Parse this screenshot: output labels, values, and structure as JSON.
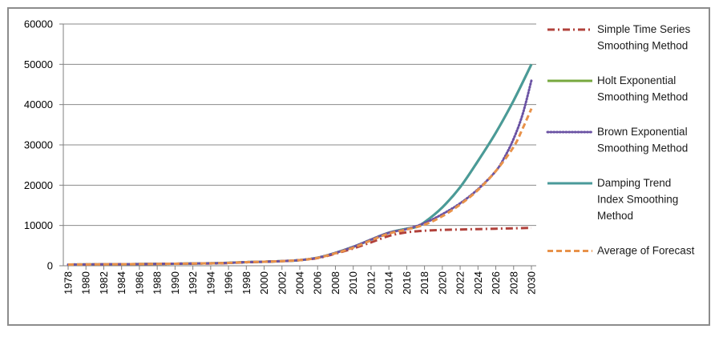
{
  "chart_data": {
    "type": "line",
    "title": "",
    "xlabel": "",
    "ylabel": "",
    "ylim": [
      0,
      60000
    ],
    "y_ticks": [
      0,
      10000,
      20000,
      30000,
      40000,
      50000,
      60000
    ],
    "y_tick_labels": [
      "0",
      "10000",
      "20000",
      "30000",
      "40000",
      "50000",
      "60000"
    ],
    "x_range": [
      1978,
      2030
    ],
    "x_ticks": [
      1978,
      1980,
      1982,
      1984,
      1986,
      1988,
      1990,
      1992,
      1994,
      1996,
      1998,
      2000,
      2002,
      2004,
      2006,
      2008,
      2010,
      2012,
      2014,
      2016,
      2018,
      2020,
      2022,
      2024,
      2026,
      2028,
      2030
    ],
    "x_tick_labels": [
      "1978",
      "1980",
      "1982",
      "1984",
      "1986",
      "1988",
      "1990",
      "1992",
      "1994",
      "1996",
      "1998",
      "2000",
      "2002",
      "2004",
      "2006",
      "2008",
      "2010",
      "2012",
      "2014",
      "2016",
      "2018",
      "2020",
      "2022",
      "2024",
      "2026",
      "2028",
      "2030"
    ],
    "grid": "horizontal",
    "legend_position": "right",
    "series": [
      {
        "name": "Holt Exponential Smoothing Method",
        "legend_lines": [
          "Holt Exponential",
          "Smoothing Method"
        ],
        "color": "#77a83f",
        "dash": "solid",
        "x": [
          1978,
          1985,
          1990,
          1995,
          1998,
          2000,
          2002,
          2004,
          2006,
          2008,
          2010,
          2012,
          2014,
          2016,
          2017,
          2018,
          2020,
          2022,
          2024,
          2026,
          2028,
          2030
        ],
        "values": [
          300,
          400,
          500,
          650,
          900,
          1000,
          1150,
          1400,
          2000,
          3200,
          4700,
          6500,
          8200,
          9200,
          9600,
          10800,
          14500,
          19500,
          26000,
          33000,
          41000,
          50000
        ]
      },
      {
        "name": "Damping Trend Index Smoothing Method",
        "legend_lines": [
          "Damping Trend",
          "Index Smoothing",
          "Method"
        ],
        "color": "#4a9a9a",
        "dash": "solid",
        "x": [
          1978,
          1985,
          1990,
          1995,
          1998,
          2000,
          2002,
          2004,
          2006,
          2008,
          2010,
          2012,
          2014,
          2016,
          2017,
          2018,
          2020,
          2022,
          2024,
          2026,
          2028,
          2030
        ],
        "values": [
          300,
          400,
          500,
          650,
          900,
          1000,
          1150,
          1400,
          2000,
          3200,
          4700,
          6500,
          8200,
          9200,
          9600,
          10800,
          14500,
          19500,
          26000,
          33000,
          41000,
          50000
        ]
      },
      {
        "name": "Simple Time Series Smoothing Method",
        "legend_lines": [
          "Simple Time Series",
          "Smoothing Method"
        ],
        "color": "#b1413b",
        "dash": "dashdot",
        "x": [
          1978,
          1985,
          1990,
          1995,
          1998,
          2000,
          2002,
          2004,
          2006,
          2008,
          2010,
          2012,
          2014,
          2016,
          2018,
          2020,
          2022,
          2024,
          2026,
          2028,
          2030
        ],
        "values": [
          300,
          400,
          500,
          600,
          850,
          1000,
          1150,
          1400,
          1900,
          3000,
          4300,
          5800,
          7400,
          8300,
          8700,
          8900,
          9000,
          9100,
          9200,
          9300,
          9400
        ]
      },
      {
        "name": "Brown Exponential Smoothing Method",
        "legend_lines": [
          "Brown Exponential",
          "Smoothing Method"
        ],
        "color": "#6a52a3",
        "dash": "dotted",
        "x": [
          1978,
          1985,
          1990,
          1995,
          1998,
          2000,
          2002,
          2004,
          2006,
          2008,
          2010,
          2012,
          2014,
          2016,
          2018,
          2020,
          2022,
          2024,
          2026,
          2027,
          2028,
          2029,
          2030
        ],
        "values": [
          300,
          400,
          500,
          650,
          900,
          1000,
          1150,
          1400,
          2000,
          3200,
          4700,
          6500,
          8200,
          9100,
          10600,
          12800,
          15500,
          19000,
          23500,
          27000,
          31500,
          37500,
          46000
        ]
      },
      {
        "name": "Average of Forecast",
        "legend_lines": [
          "Average of Forecast"
        ],
        "color": "#e8924a",
        "dash": "dashed",
        "x": [
          1978,
          1985,
          1990,
          1995,
          1998,
          2000,
          2002,
          2004,
          2006,
          2008,
          2010,
          2012,
          2014,
          2016,
          2018,
          2020,
          2022,
          2024,
          2026,
          2028,
          2029,
          2030
        ],
        "values": [
          300,
          400,
          500,
          650,
          900,
          1000,
          1150,
          1400,
          1950,
          3100,
          4500,
          6300,
          8000,
          9000,
          10200,
          12300,
          15200,
          18800,
          23500,
          29500,
          34000,
          39000
        ]
      }
    ],
    "legend_order": [
      "Simple Time Series Smoothing Method",
      "Holt Exponential Smoothing Method",
      "Brown Exponential Smoothing Method",
      "Damping Trend Index Smoothing Method",
      "Average of Forecast"
    ]
  }
}
